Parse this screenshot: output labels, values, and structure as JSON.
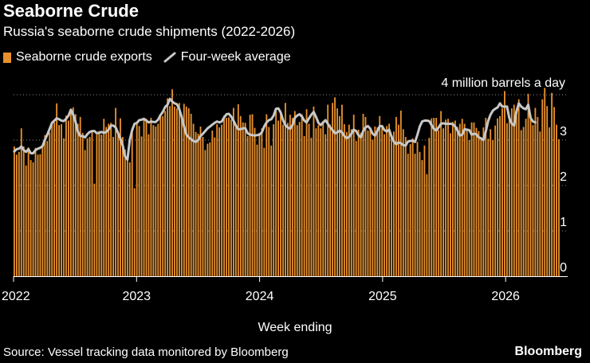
{
  "title": "Seaborne Crude",
  "subtitle": "Russia's seaborne crude shipments (2022-2026)",
  "legend": {
    "bar_label": "Seaborne crude exports",
    "line_label": "Four-week average"
  },
  "source": "Source: Vessel tracking data monitored by Bloomberg",
  "brand": "Bloomberg",
  "colors": {
    "bar": "#e8912d",
    "line": "#c8c8c8",
    "background": "#000000",
    "grid": "#888888"
  },
  "chart_data": {
    "type": "bar",
    "title": "Seaborne Crude",
    "xlabel": "Week ending",
    "ylabel": "",
    "ylim": [
      0,
      4
    ],
    "yticks": [
      0,
      1,
      2,
      3
    ],
    "xticks": [
      "2022",
      "2023",
      "2024",
      "2025",
      "2026"
    ],
    "annotation": "4 million barrels a day",
    "series": [
      {
        "name": "Seaborne crude exports",
        "values": [
          2.86,
          2.68,
          2.74,
          3.26,
          2.86,
          2.44,
          2.84,
          2.56,
          2.51,
          2.83,
          2.68,
          2.69,
          2.86,
          3.11,
          2.98,
          3.17,
          3.4,
          3.39,
          3.81,
          3.33,
          3.35,
          3.04,
          3.54,
          3.43,
          3.6,
          3.72,
          3.57,
          3.36,
          3.51,
          3.16,
          2.78,
          3.04,
          3.07,
          3.2,
          2.04,
          3.12,
          3.2,
          3.12,
          3.47,
          3.29,
          3.36,
          3.38,
          3.07,
          3.71,
          3.13,
          3.48,
          3.07,
          2.79,
          2.55,
          2.51,
          3.27,
          1.94,
          3.39,
          3.31,
          3.08,
          3.45,
          3.47,
          3.13,
          3.49,
          3.33,
          3.3,
          3.36,
          3.52,
          3.53,
          3.64,
          3.92,
          3.75,
          4.12,
          3.74,
          3.7,
          3.82,
          3.56,
          3.8,
          3.74,
          3.7,
          3.58,
          3.36,
          3.18,
          3.14,
          3.3,
          3.07,
          2.78,
          2.92,
          2.95,
          3.21,
          3.06,
          3.35,
          3.28,
          3.34,
          3.54,
          3.49,
          3.5,
          3.45,
          3.71,
          3.35,
          3.79,
          3.53,
          3.39,
          3.38,
          3.09,
          3.56,
          3.57,
          3.27,
          2.9,
          3.16,
          3.26,
          2.83,
          3.57,
          3.29,
          2.88,
          3.35,
          3.67,
          3.43,
          3.59,
          3.34,
          3.82,
          3.38,
          3.56,
          3.49,
          3.64,
          3.33,
          3.4,
          3.57,
          3.09,
          3.68,
          3.36,
          3.05,
          3.74,
          3.26,
          3.33,
          3.26,
          3.42,
          3.13,
          3.78,
          3.34,
          3.82,
          3.94,
          3.7,
          3.53,
          3.78,
          3.35,
          3.18,
          3.34,
          3.24,
          3.56,
          2.98,
          3.23,
          3.16,
          3.58,
          3.51,
          3.21,
          3.28,
          3.01,
          3.3,
          3.28,
          3.53,
          3.29,
          3.13,
          3.31,
          3.36,
          3.07,
          3.19,
          3.51,
          3.34,
          3.65,
          3.24,
          3.07,
          2.7,
          2.91,
          3.04,
          2.7,
          2.96,
          2.74,
          2.56,
          2.88,
          2.25,
          3.05,
          3.48,
          3.49,
          3.49,
          3.22,
          3.64,
          3.26,
          3.45,
          3.47,
          3.15,
          3.4,
          3.43,
          3.29,
          3.36,
          3.47,
          3.36,
          3.22,
          3.0,
          3.39,
          3.39,
          3.27,
          3.2,
          3.05,
          3.28,
          3.49,
          3.03,
          3.24,
          3.0,
          3.32,
          3.48,
          3.53,
          3.7,
          4.08,
          3.37,
          3.5,
          3.7,
          3.78,
          3.53,
          3.9,
          3.22,
          3.29,
          3.47,
          4.02,
          3.56,
          3.33,
          3.71,
          3.51,
          3.19,
          3.9,
          4.15,
          3.75,
          3.28,
          4.04,
          3.73,
          3.34,
          3.02
        ]
      },
      {
        "name": "Four-week average",
        "values": [
          2.75,
          2.8,
          2.81,
          2.86,
          2.78,
          2.74,
          2.8,
          2.71,
          2.71,
          2.78,
          2.81,
          2.83,
          2.87,
          3.01,
          3.12,
          3.25,
          3.38,
          3.43,
          3.48,
          3.46,
          3.43,
          3.42,
          3.47,
          3.54,
          3.67,
          3.56,
          3.4,
          3.18,
          3.09,
          3.09,
          3.06,
          3.13,
          3.18,
          3.2,
          3.2,
          3.15,
          3.16,
          3.18,
          3.16,
          3.18,
          3.23,
          3.32,
          3.32,
          3.28,
          3.16,
          3.03,
          2.88,
          2.64,
          2.57,
          3.01,
          3.22,
          3.36,
          3.38,
          3.44,
          3.45,
          3.47,
          3.43,
          3.39,
          3.41,
          3.4,
          3.4,
          3.45,
          3.55,
          3.62,
          3.73,
          3.78,
          3.91,
          3.85,
          3.81,
          3.79,
          3.68,
          3.51,
          3.3,
          3.12,
          3.06,
          3.02,
          2.98,
          2.96,
          3.0,
          3.09,
          3.14,
          3.2,
          3.26,
          3.3,
          3.34,
          3.38,
          3.41,
          3.39,
          3.41,
          3.5,
          3.57,
          3.58,
          3.52,
          3.43,
          3.32,
          3.24,
          3.24,
          3.26,
          3.26,
          3.15,
          3.12,
          3.11,
          3.1,
          3.11,
          3.12,
          3.17,
          3.3,
          3.39,
          3.44,
          3.46,
          3.54,
          3.69,
          3.7,
          3.61,
          3.44,
          3.33,
          3.28,
          3.25,
          3.33,
          3.49,
          3.54,
          3.57,
          3.52,
          3.43,
          3.39,
          3.48,
          3.56,
          3.62,
          3.51,
          3.38,
          3.33,
          3.39,
          3.44,
          3.36,
          3.28,
          3.22,
          3.15,
          3.17,
          3.21,
          3.17,
          3.09,
          3.04,
          3.07,
          3.14,
          3.23,
          3.2,
          3.11,
          3.06,
          3.2,
          3.28,
          3.31,
          3.25,
          3.14,
          3.1,
          3.2,
          3.31,
          3.31,
          3.22,
          3.19,
          3.23,
          3.08,
          2.97,
          2.91,
          2.95,
          2.93,
          2.89,
          2.88,
          2.97,
          2.98,
          2.99,
          2.96,
          3.12,
          3.3,
          3.41,
          3.43,
          3.43,
          3.42,
          3.33,
          3.25,
          3.21,
          3.28,
          3.36,
          3.37,
          3.36,
          3.36,
          3.36,
          3.35,
          3.3,
          3.21,
          3.1,
          3.12,
          3.24,
          3.23,
          3.22,
          3.12,
          3.14,
          3.13,
          3.06,
          3.04,
          3.0,
          3.19,
          3.42,
          3.56,
          3.65,
          3.69,
          3.72,
          3.81,
          3.74,
          3.74,
          3.74,
          3.48,
          3.37,
          3.32,
          3.63,
          3.81,
          3.74,
          3.7,
          3.68,
          3.78,
          3.49,
          3.41,
          3.39
        ]
      }
    ]
  }
}
